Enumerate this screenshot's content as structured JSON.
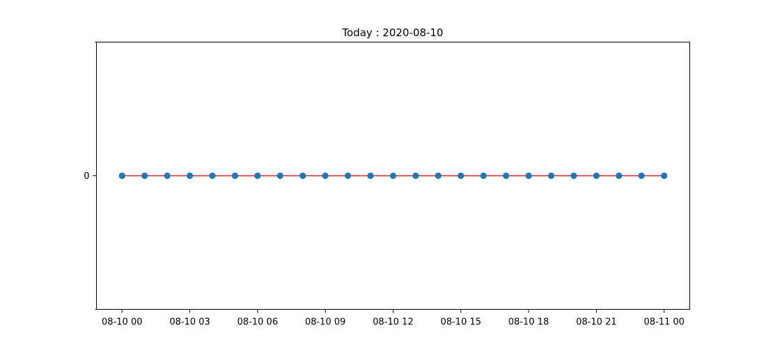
{
  "chart_data": {
    "type": "line",
    "title": "Today : 2020-08-10",
    "xlabel": "",
    "ylabel": "",
    "x": [
      "2020-08-10 00:00",
      "2020-08-10 01:00",
      "2020-08-10 02:00",
      "2020-08-10 03:00",
      "2020-08-10 04:00",
      "2020-08-10 05:00",
      "2020-08-10 06:00",
      "2020-08-10 07:00",
      "2020-08-10 08:00",
      "2020-08-10 09:00",
      "2020-08-10 10:00",
      "2020-08-10 11:00",
      "2020-08-10 12:00",
      "2020-08-10 13:00",
      "2020-08-10 14:00",
      "2020-08-10 15:00",
      "2020-08-10 16:00",
      "2020-08-10 17:00",
      "2020-08-10 18:00",
      "2020-08-10 19:00",
      "2020-08-10 20:00",
      "2020-08-10 21:00",
      "2020-08-10 22:00",
      "2020-08-10 23:00",
      "2020-08-11 00:00"
    ],
    "series": [
      {
        "values": [
          0,
          0,
          0,
          0,
          0,
          0,
          0,
          0,
          0,
          0,
          0,
          0,
          0,
          0,
          0,
          0,
          0,
          0,
          0,
          0,
          0,
          0,
          0,
          0,
          0
        ],
        "marker_color": "#1f77b4",
        "line_color": "#d62728"
      }
    ],
    "xticks": [
      {
        "value": "2020-08-10 00:00",
        "label": "08-10 00"
      },
      {
        "value": "2020-08-10 03:00",
        "label": "08-10 03"
      },
      {
        "value": "2020-08-10 06:00",
        "label": "08-10 06"
      },
      {
        "value": "2020-08-10 09:00",
        "label": "08-10 09"
      },
      {
        "value": "2020-08-10 12:00",
        "label": "08-10 12"
      },
      {
        "value": "2020-08-10 15:00",
        "label": "08-10 15"
      },
      {
        "value": "2020-08-10 18:00",
        "label": "08-10 18"
      },
      {
        "value": "2020-08-10 21:00",
        "label": "08-10 21"
      },
      {
        "value": "2020-08-11 00:00",
        "label": "08-11 00"
      }
    ],
    "yticks": [
      {
        "value": 0,
        "label": "0"
      }
    ],
    "xlim": [
      "2020-08-09 22:52",
      "2020-08-11 01:08"
    ],
    "ylim": [
      -1,
      1
    ],
    "grid": false,
    "legend": "none"
  }
}
